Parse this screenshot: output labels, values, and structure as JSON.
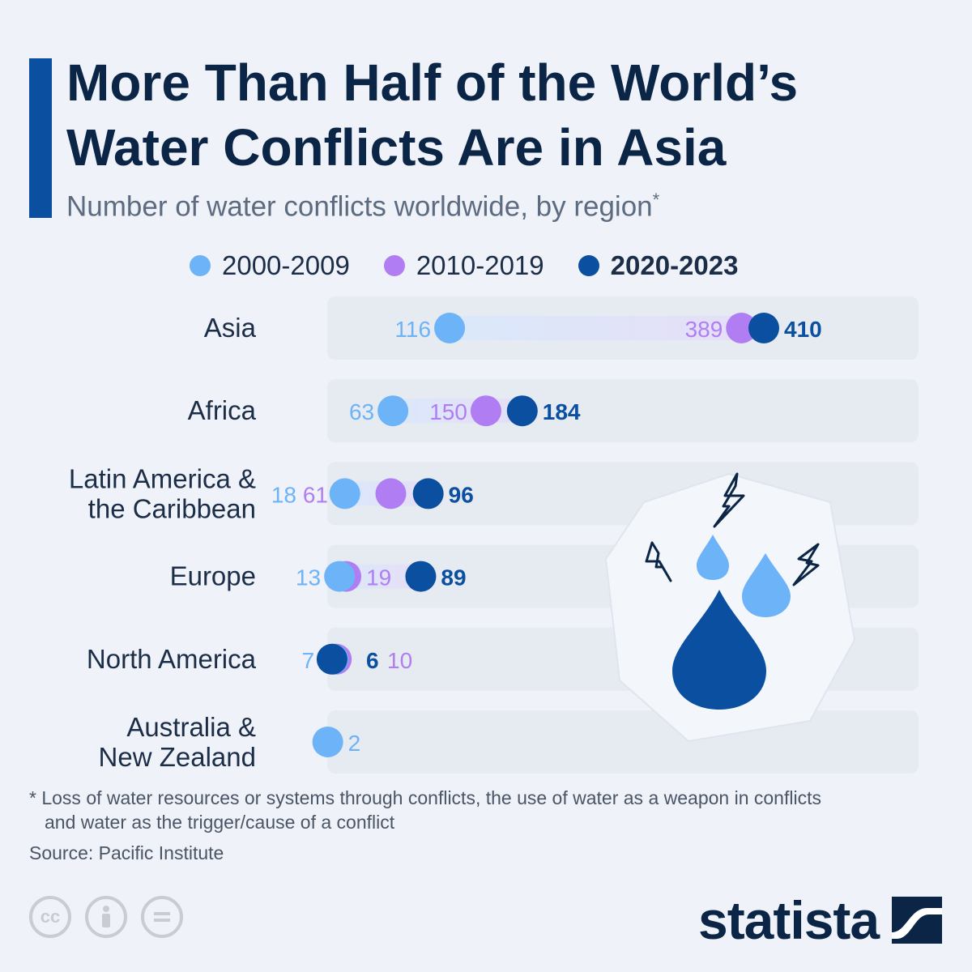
{
  "title_line1": "More Than Half of the World’s",
  "title_line2": "Water Conflicts Are in Asia",
  "subtitle": "Number of water conflicts worldwide, by region",
  "subtitle_mark": "*",
  "legend": [
    {
      "label": "2000-2009",
      "color": "#6db3f8"
    },
    {
      "label": "2010-2019",
      "color": "#b07ef2"
    },
    {
      "label": "2020-2023",
      "color": "#0a4fa0"
    }
  ],
  "chart_data": {
    "type": "dot-plot",
    "title": "More Than Half of the World’s Water Conflicts Are in Asia",
    "subtitle": "Number of water conflicts worldwide, by region",
    "series": [
      {
        "name": "2000-2009",
        "color": "#6db3f8",
        "values": [
          116,
          63,
          18,
          13,
          7,
          2
        ]
      },
      {
        "name": "2010-2019",
        "color": "#b07ef2",
        "values": [
          389,
          150,
          61,
          19,
          10,
          null
        ]
      },
      {
        "name": "2020-2023",
        "color": "#0a4fa0",
        "values": [
          410,
          184,
          96,
          89,
          6,
          null
        ]
      }
    ],
    "categories": [
      "Asia",
      "Africa",
      "Latin America & the Caribbean",
      "Europe",
      "North America",
      "Australia & New Zealand"
    ],
    "category_lines": [
      [
        "Asia"
      ],
      [
        "Africa"
      ],
      [
        "Latin America &",
        "the Caribbean"
      ],
      [
        "Europe"
      ],
      [
        "North America"
      ],
      [
        "Australia &",
        "New Zealand"
      ]
    ],
    "value_labels": [
      [
        "116",
        "389",
        "410"
      ],
      [
        "63",
        "150",
        "184"
      ],
      [
        "18",
        "61",
        "96"
      ],
      [
        "13",
        "19",
        "89"
      ],
      [
        "7",
        "10",
        "6"
      ],
      [
        "2",
        null,
        null
      ]
    ],
    "xlim": [
      0,
      500
    ]
  },
  "footnote_line1": "* Loss of water resources or systems through conflicts, the use of water as a weapon in conflicts",
  "footnote_line2": "and water as the trigger/cause of a conflict",
  "source": "Source: Pacific Institute",
  "cc_icons": [
    "cc",
    "by",
    "nd"
  ],
  "logo": "statista"
}
